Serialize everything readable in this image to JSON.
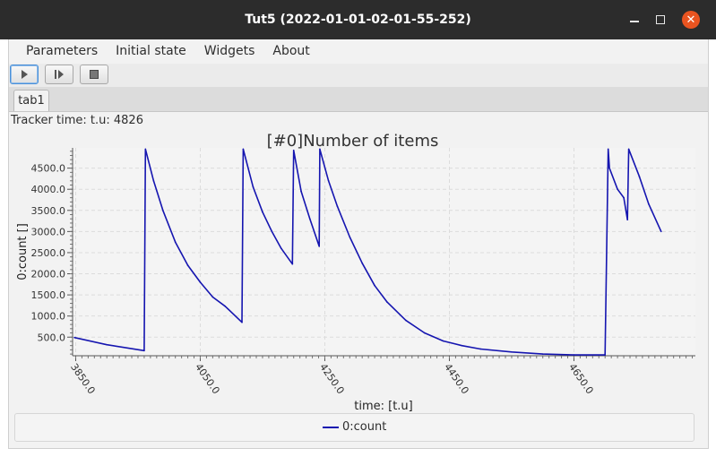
{
  "window": {
    "title": "Tut5 (2022-01-01-02-01-55-252)"
  },
  "menu": [
    "Parameters",
    "Initial state",
    "Widgets",
    "About"
  ],
  "toolbar": {
    "buttons": [
      {
        "icon": "play-icon"
      },
      {
        "icon": "step-icon"
      },
      {
        "icon": "stop-icon"
      }
    ]
  },
  "tabs": [
    "tab1"
  ],
  "tracker_text": "Tracker time: t.u: 4826",
  "colors": {
    "series": "#1515b0",
    "close": "#e95420"
  },
  "chart_data": {
    "type": "line",
    "title": "[#0]Number of items",
    "xlabel": "time:  [t.u]",
    "ylabel": "0:count []",
    "xlim": [
      3845,
      4845
    ],
    "ylim": [
      60,
      4980
    ],
    "xticks": [
      "3850.0",
      "4050.0",
      "4250.0",
      "4450.0",
      "4650.0"
    ],
    "yticks": [
      "500.0",
      "1000.0",
      "1500.0",
      "2000.0",
      "2500.0",
      "3000.0",
      "3500.0",
      "4000.0",
      "4500.0"
    ],
    "grid": true,
    "legend_position": "bottom",
    "series": [
      {
        "name": "0:count",
        "color": "#1515b0",
        "x": [
          3848,
          3900,
          3960,
          3962,
          3975,
          3990,
          4010,
          4030,
          4050,
          4070,
          4090,
          4117,
          4119,
          4135,
          4150,
          4165,
          4180,
          4198,
          4200,
          4212,
          4226,
          4241,
          4242,
          4256,
          4270,
          4290,
          4310,
          4330,
          4350,
          4380,
          4410,
          4440,
          4470,
          4500,
          4550,
          4600,
          4650,
          4700,
          4705,
          4707,
          4720,
          4730,
          4736,
          4738,
          4755,
          4770,
          4790
        ],
        "y": [
          490,
          320,
          180,
          4950,
          4200,
          3500,
          2750,
          2200,
          1800,
          1450,
          1230,
          850,
          4950,
          4050,
          3460,
          3000,
          2600,
          2230,
          4920,
          3950,
          3300,
          2650,
          4950,
          4200,
          3600,
          2870,
          2250,
          1720,
          1330,
          900,
          600,
          410,
          300,
          220,
          150,
          100,
          80,
          80,
          4950,
          4500,
          4000,
          3800,
          3280,
          4950,
          4300,
          3650,
          3000
        ]
      }
    ]
  }
}
